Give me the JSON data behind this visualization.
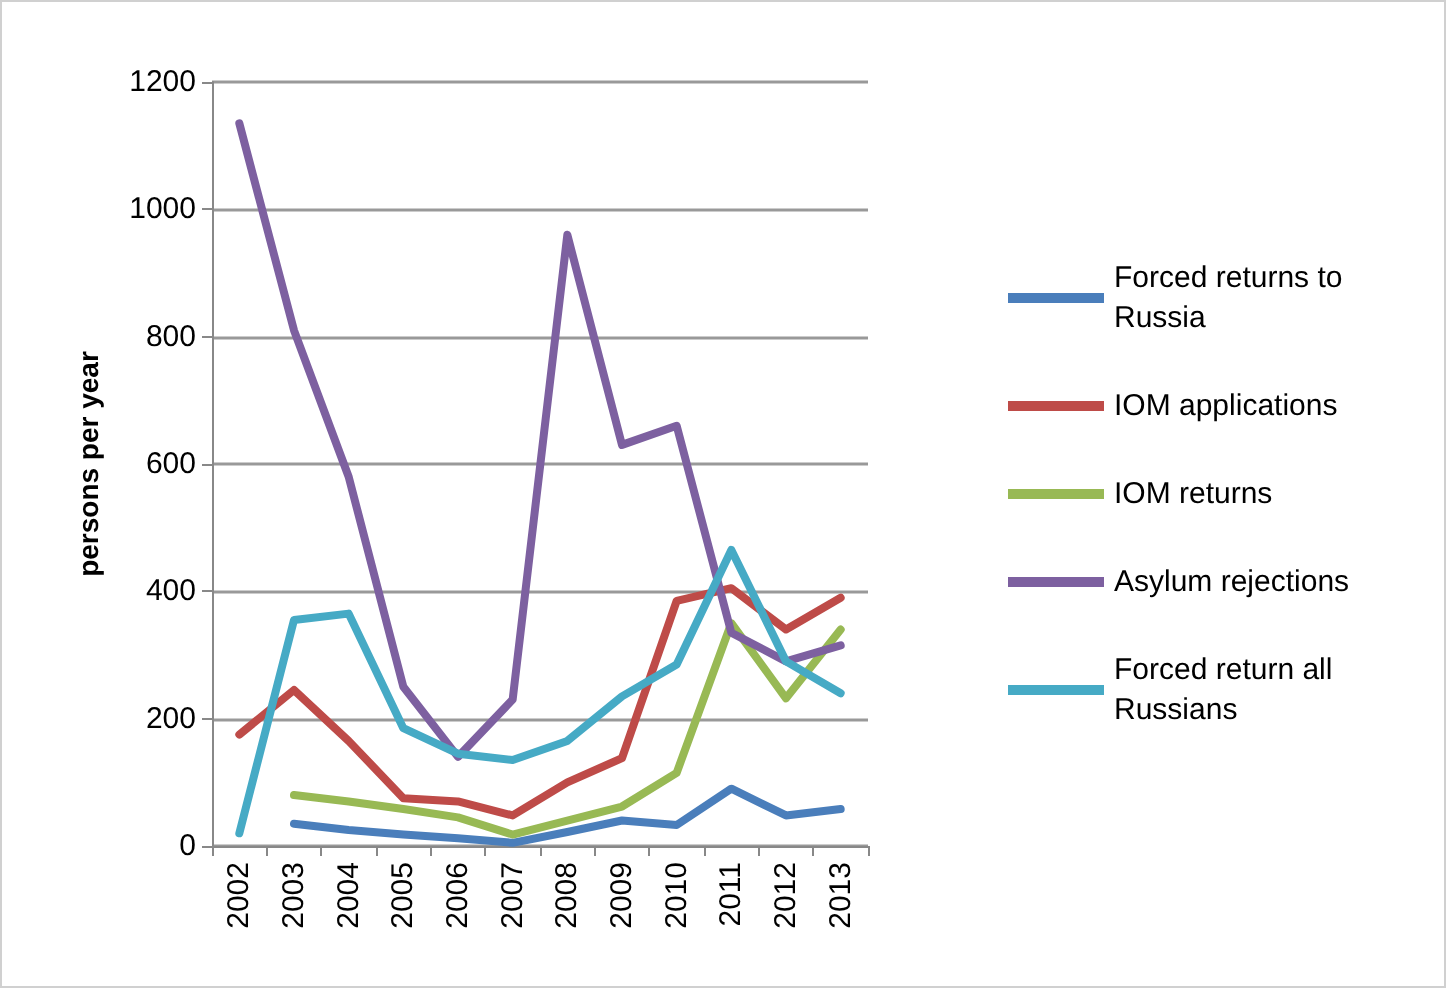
{
  "chart_data": {
    "type": "line",
    "ylabel": "persons per year",
    "categories": [
      "2002",
      "2003",
      "2004",
      "2005",
      "2006",
      "2007",
      "2008",
      "2009",
      "2010",
      "2011",
      "2012",
      "2013"
    ],
    "series": [
      {
        "name": "Forced returns to Russia",
        "color": "#4a7ebb",
        "values": [
          null,
          35,
          25,
          18,
          12,
          5,
          22,
          40,
          33,
          90,
          48,
          58
        ]
      },
      {
        "name": "IOM applications",
        "color": "#be4b48",
        "values": [
          175,
          245,
          165,
          75,
          70,
          48,
          100,
          138,
          385,
          405,
          340,
          390
        ]
      },
      {
        "name": "IOM returns",
        "color": "#98b954",
        "values": [
          null,
          80,
          70,
          58,
          45,
          18,
          40,
          62,
          115,
          350,
          232,
          340
        ]
      },
      {
        "name": "Asylum rejections",
        "color": "#7d60a0",
        "values": [
          1135,
          810,
          580,
          250,
          140,
          230,
          960,
          630,
          660,
          335,
          290,
          315
        ]
      },
      {
        "name": "Forced return all Russians",
        "color": "#46aac5",
        "values": [
          20,
          355,
          365,
          185,
          145,
          135,
          165,
          235,
          285,
          465,
          290,
          240
        ]
      }
    ],
    "ylim": [
      0,
      1200
    ],
    "yticks": [
      0,
      200,
      400,
      600,
      800,
      1000,
      1200
    ],
    "grid": "y",
    "legend": "right",
    "marker": "none",
    "line_style": "solid"
  }
}
